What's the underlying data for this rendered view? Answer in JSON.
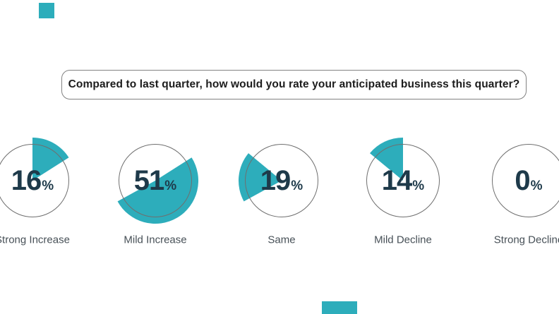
{
  "question": {
    "text": "Compared to last quarter, how would you rate your anticipated business this quarter?"
  },
  "chart_data": {
    "type": "pie",
    "variant": "small-multiple pie gauges",
    "title": "Compared to last quarter, how would you rate your anticipated business this quarter?",
    "categories": [
      "Strong Increase",
      "Mild Increase",
      "Same",
      "Mild Decline",
      "Strong Decline"
    ],
    "values": [
      16,
      51,
      19,
      14,
      0
    ],
    "unit": "%",
    "legend": "none",
    "notes": "Each category is drawn in its own outlined circle; the teal wedge is that category's consecutive slice of one full pie, starting at 12 o'clock and proceeding clockwise (wedge radius slightly larger than the outlined circle)."
  },
  "colors": {
    "accent_teal": "#2dadbb",
    "value_navy": "#1e3a4a",
    "label_gray": "#475057",
    "circle_outline": "#6f6f6f",
    "box_border": "#828282",
    "question_text": "#1c1c1c",
    "background": "#ffffff"
  }
}
